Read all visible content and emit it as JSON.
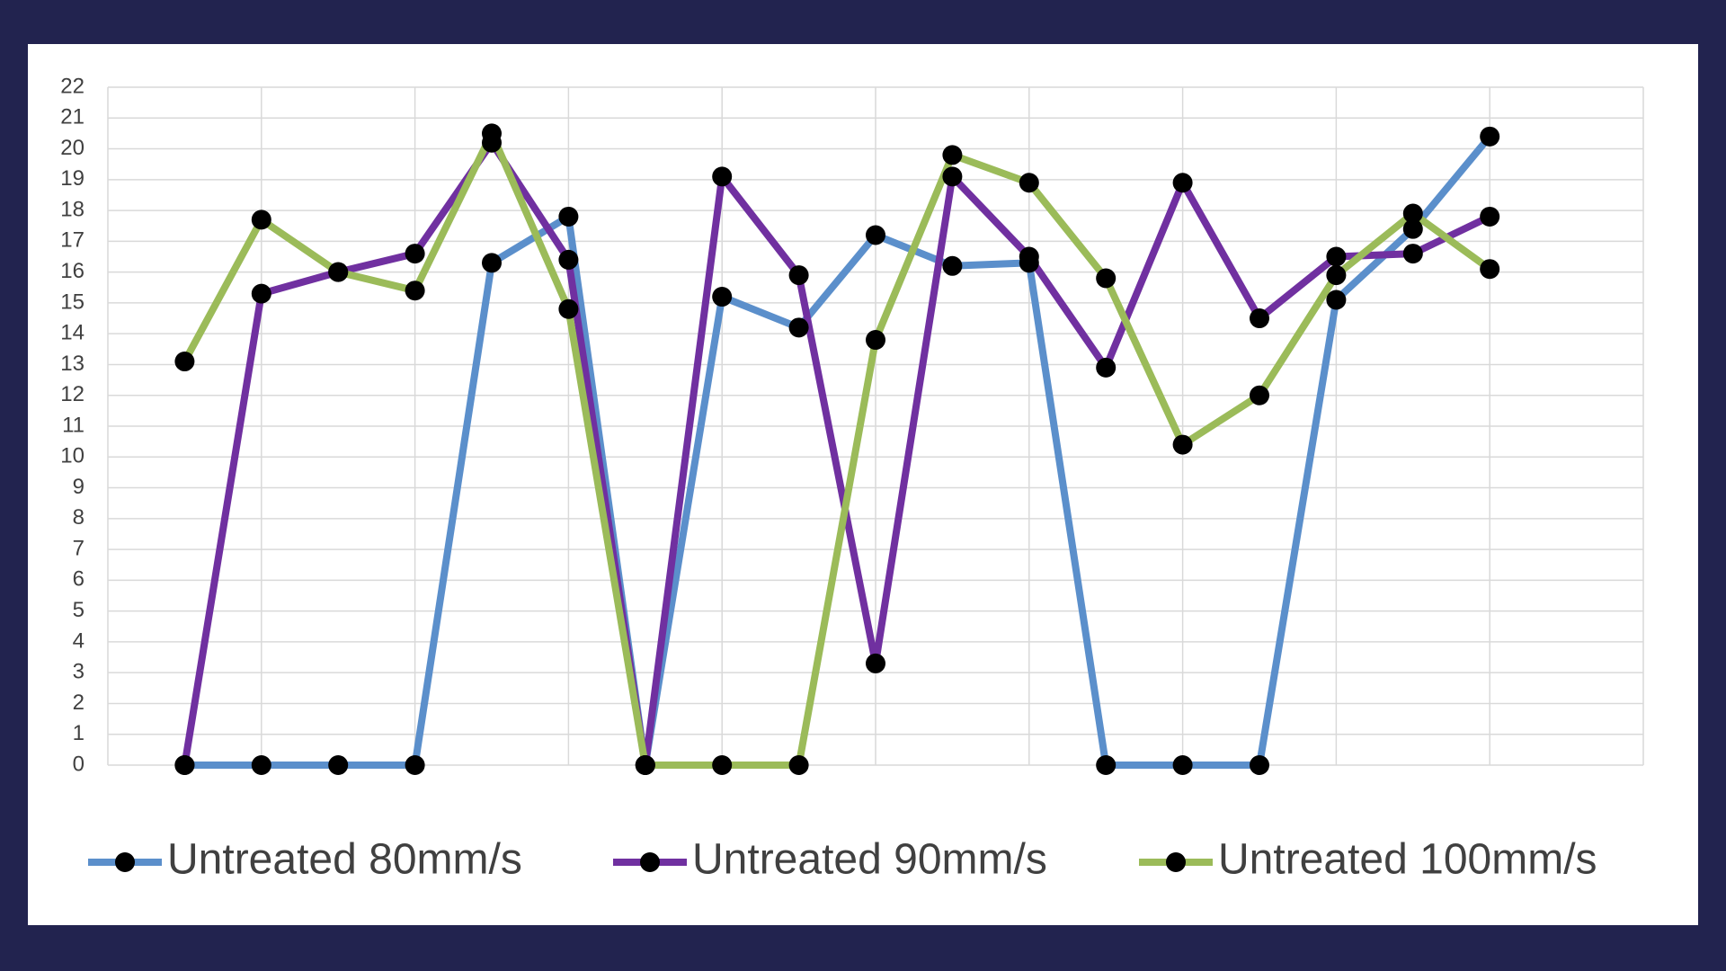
{
  "chart_data": {
    "type": "line",
    "categories": [
      null,
      null,
      null,
      null,
      null,
      null,
      null,
      null,
      null,
      null,
      null,
      null,
      null,
      null,
      null,
      null,
      null,
      null
    ],
    "series": [
      {
        "name": "Untreated 80mm/s",
        "color": "#5b8fcb",
        "values": [
          0,
          0,
          0,
          0,
          16.3,
          17.8,
          0,
          15.2,
          14.2,
          17.2,
          16.2,
          16.3,
          0,
          0,
          0,
          15.1,
          17.4,
          20.4
        ]
      },
      {
        "name": "Untreated 90mm/s",
        "color": "#7030a0",
        "values": [
          0,
          15.3,
          16.0,
          16.6,
          20.2,
          16.4,
          0,
          19.1,
          15.9,
          3.3,
          19.1,
          16.5,
          12.9,
          18.9,
          14.5,
          16.5,
          16.6,
          17.8
        ]
      },
      {
        "name": "Untreated 100mm/s",
        "color": "#9bbb59",
        "values": [
          13.1,
          17.7,
          16.0,
          15.4,
          20.5,
          14.8,
          0,
          0,
          0,
          13.8,
          19.8,
          18.9,
          15.8,
          10.4,
          12.0,
          15.9,
          17.9,
          16.1
        ]
      }
    ],
    "ylim": [
      0,
      22
    ],
    "yticks": [
      0,
      1,
      2,
      3,
      4,
      5,
      6,
      7,
      8,
      9,
      10,
      11,
      12,
      13,
      14,
      15,
      16,
      17,
      18,
      19,
      20,
      21,
      22
    ],
    "grid": true,
    "marker_color": "#000000"
  }
}
